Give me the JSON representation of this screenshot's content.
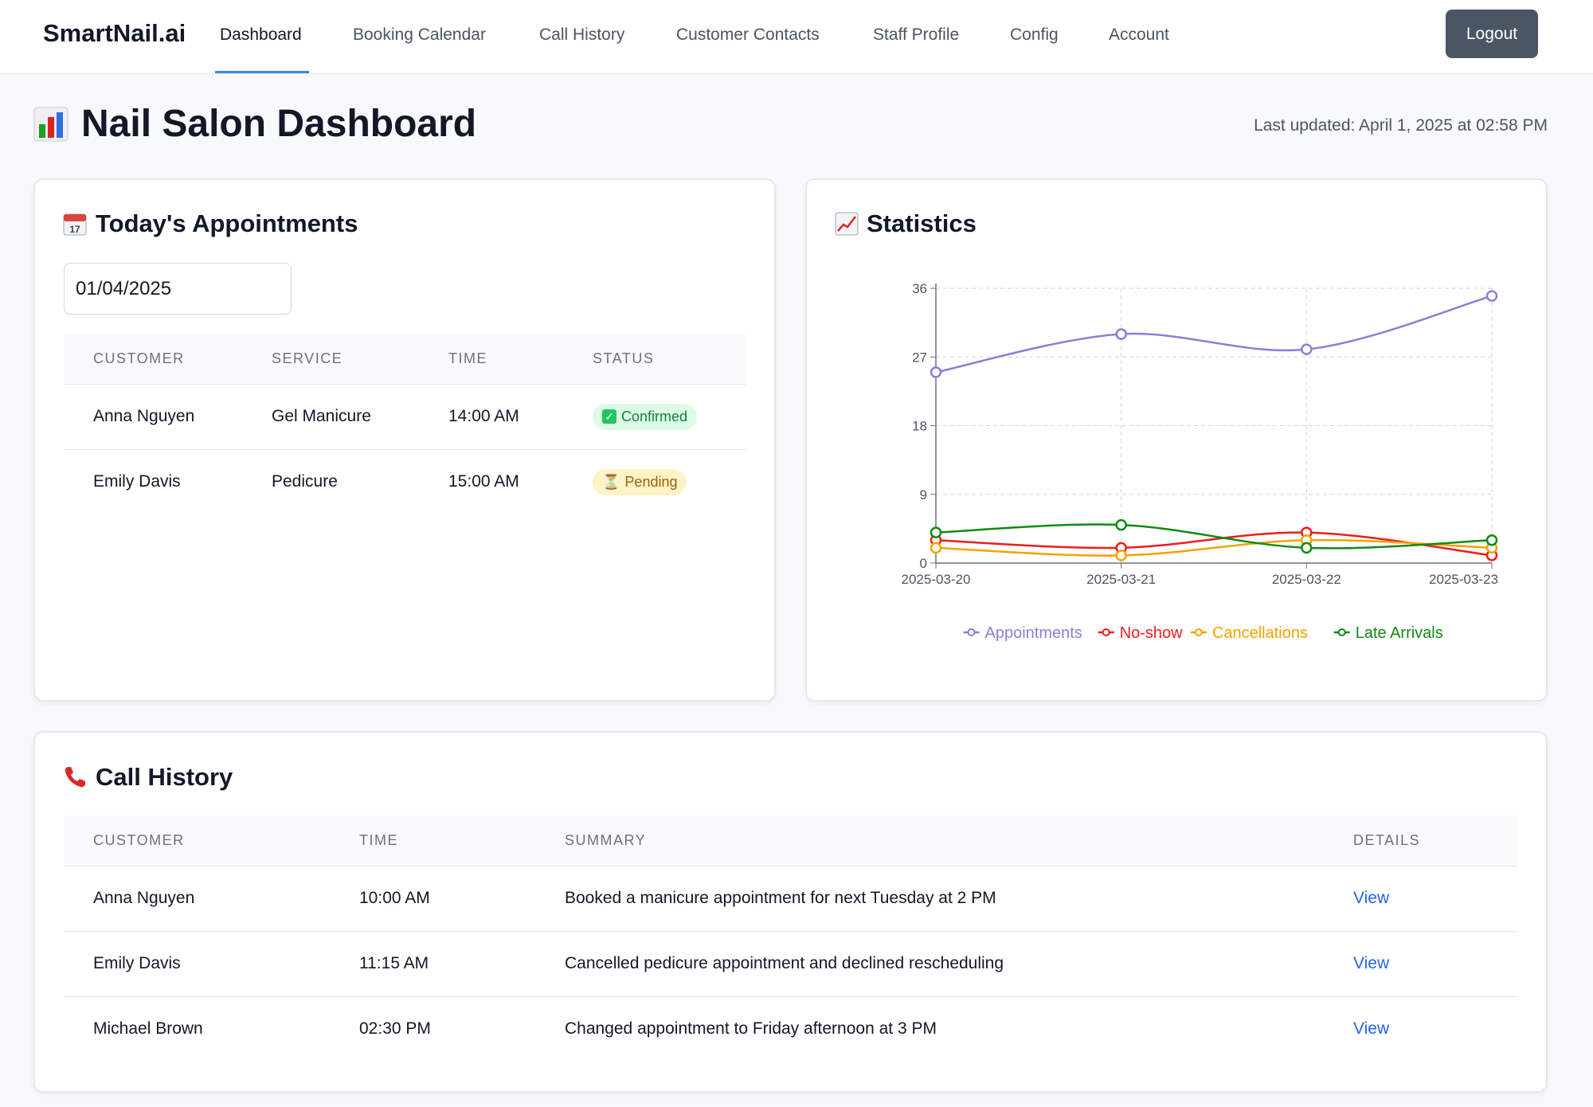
{
  "nav": {
    "brand": "SmartNail.ai",
    "items": [
      {
        "label": "Dashboard",
        "active": true
      },
      {
        "label": "Booking Calendar"
      },
      {
        "label": "Call History"
      },
      {
        "label": "Customer Contacts"
      },
      {
        "label": "Staff Profile"
      },
      {
        "label": "Config"
      },
      {
        "label": "Account"
      }
    ],
    "logout_label": "Logout"
  },
  "header": {
    "icon": "bar-chart-icon",
    "title": "Nail Salon Dashboard",
    "last_updated": "Last updated: April 1, 2025 at 02:58 PM"
  },
  "appointments": {
    "icon": "calendar-icon",
    "title": "Today's Appointments",
    "date_value": "01/04/2025",
    "columns": [
      "CUSTOMER",
      "SERVICE",
      "TIME",
      "STATUS"
    ],
    "rows": [
      {
        "customer": "Anna Nguyen",
        "service": "Gel Manicure",
        "time": "14:00 AM",
        "status": "Confirmed",
        "status_icon": "check-icon",
        "status_color": "#15803d"
      },
      {
        "customer": "Emily Davis",
        "service": "Pedicure",
        "time": "15:00 AM",
        "status": "Pending",
        "status_icon": "hourglass-icon",
        "status_color": "#a16207"
      }
    ]
  },
  "statistics": {
    "icon": "trend-chart-icon",
    "title": "Statistics"
  },
  "chart_data": {
    "type": "line",
    "x": [
      "2025-03-20",
      "2025-03-21",
      "2025-03-22",
      "2025-03-23"
    ],
    "ylim": [
      0,
      36
    ],
    "yticks": [
      0,
      9,
      18,
      27,
      36
    ],
    "grid": true,
    "legend_position": "bottom",
    "series": [
      {
        "name": "Appointments",
        "color": "#8b7fd6",
        "values": [
          25,
          30,
          28,
          35
        ]
      },
      {
        "name": "No-show",
        "color": "#ef1c1c",
        "values": [
          3,
          2,
          4,
          1
        ]
      },
      {
        "name": "Cancellations",
        "color": "#f5a100",
        "values": [
          2,
          1,
          3,
          2
        ]
      },
      {
        "name": "Late Arrivals",
        "color": "#118a11",
        "values": [
          4,
          5,
          2,
          3
        ]
      }
    ]
  },
  "calls": {
    "icon": "phone-icon",
    "title": "Call History",
    "columns": [
      "CUSTOMER",
      "TIME",
      "SUMMARY",
      "DETAILS"
    ],
    "rows": [
      {
        "customer": "Anna Nguyen",
        "time": "10:00 AM",
        "summary": "Booked a manicure appointment for next Tuesday at 2 PM",
        "details": "View"
      },
      {
        "customer": "Emily Davis",
        "time": "11:15 AM",
        "summary": "Cancelled pedicure appointment and declined rescheduling",
        "details": "View"
      },
      {
        "customer": "Michael Brown",
        "time": "02:30 PM",
        "summary": "Changed appointment to Friday afternoon at 3 PM",
        "details": "View"
      }
    ]
  }
}
